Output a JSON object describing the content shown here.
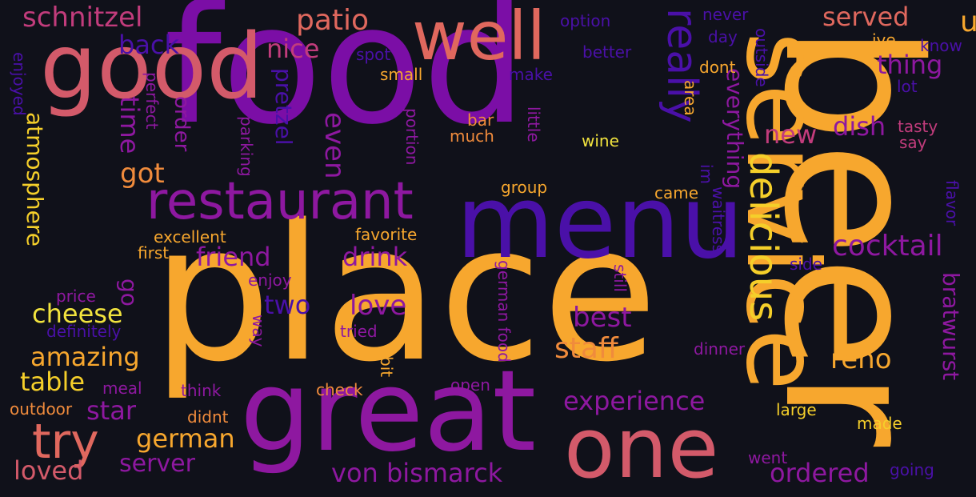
{
  "words": [
    {
      "id": "food",
      "text": "food",
      "color": "purple"
    },
    {
      "id": "place",
      "text": "place",
      "color": "amber"
    },
    {
      "id": "beer",
      "text": "beer",
      "color": "amber"
    },
    {
      "id": "great",
      "text": "great",
      "color": "violet"
    },
    {
      "id": "menu",
      "text": "menu",
      "color": "indigo"
    },
    {
      "id": "good",
      "text": "good",
      "color": "rose"
    },
    {
      "id": "service",
      "text": "service",
      "color": "amber"
    },
    {
      "id": "one",
      "text": "one",
      "color": "rose"
    },
    {
      "id": "well",
      "text": "well",
      "color": "salmon"
    },
    {
      "id": "restaurant",
      "text": "restaurant",
      "color": "violet"
    },
    {
      "id": "delicious",
      "text": "delicious",
      "color": "yellow"
    },
    {
      "id": "try",
      "text": "try",
      "color": "salmon"
    },
    {
      "id": "really",
      "text": "really",
      "color": "indigo"
    },
    {
      "id": "u",
      "text": "u",
      "color": "amber"
    },
    {
      "id": "schnitzel",
      "text": "schnitzel",
      "color": "pink"
    },
    {
      "id": "patio",
      "text": "patio",
      "color": "salmon"
    },
    {
      "id": "served",
      "text": "served",
      "color": "salmon"
    },
    {
      "id": "back",
      "text": "back",
      "color": "indigo"
    },
    {
      "id": "nice",
      "text": "nice",
      "color": "pink"
    },
    {
      "id": "thing",
      "text": "thing",
      "color": "violet"
    },
    {
      "id": "everything",
      "text": "everything",
      "color": "violet"
    },
    {
      "id": "new",
      "text": "new",
      "color": "pink"
    },
    {
      "id": "dish",
      "text": "dish",
      "color": "violet"
    },
    {
      "id": "pretzel",
      "text": "pretzel",
      "color": "indigo"
    },
    {
      "id": "even",
      "text": "even",
      "color": "violet"
    },
    {
      "id": "time",
      "text": "time",
      "color": "violet"
    },
    {
      "id": "order",
      "text": "order",
      "color": "violet"
    },
    {
      "id": "got",
      "text": "got",
      "color": "orange"
    },
    {
      "id": "atmosphere",
      "text": "atmosphere",
      "color": "yellow"
    },
    {
      "id": "friend",
      "text": "friend",
      "color": "violet"
    },
    {
      "id": "drink",
      "text": "drink",
      "color": "violet"
    },
    {
      "id": "cocktail",
      "text": "cocktail",
      "color": "violet"
    },
    {
      "id": "bratwurst",
      "text": "bratwurst",
      "color": "violet"
    },
    {
      "id": "cheese",
      "text": "cheese",
      "color": "lemon"
    },
    {
      "id": "go",
      "text": "go",
      "color": "violet"
    },
    {
      "id": "two",
      "text": "two",
      "color": "indigo"
    },
    {
      "id": "love",
      "text": "love",
      "color": "violet"
    },
    {
      "id": "best",
      "text": "best",
      "color": "violet"
    },
    {
      "id": "staff",
      "text": "staff",
      "color": "orange"
    },
    {
      "id": "reno",
      "text": "reno",
      "color": "amber"
    },
    {
      "id": "amazing",
      "text": "amazing",
      "color": "amber"
    },
    {
      "id": "table",
      "text": "table",
      "color": "yellow"
    },
    {
      "id": "experience",
      "text": "experience",
      "color": "violet"
    },
    {
      "id": "star",
      "text": "star",
      "color": "violet"
    },
    {
      "id": "german",
      "text": "german",
      "color": "amber"
    },
    {
      "id": "server",
      "text": "server",
      "color": "violet"
    },
    {
      "id": "loved",
      "text": "loved",
      "color": "rose"
    },
    {
      "id": "von-bismarck",
      "text": "von bismarck",
      "color": "violet"
    },
    {
      "id": "ordered",
      "text": "ordered",
      "color": "violet"
    },
    {
      "id": "tasty",
      "text": "tasty",
      "color": "pink"
    },
    {
      "id": "say",
      "text": "say",
      "color": "pink"
    },
    {
      "id": "lot",
      "text": "lot",
      "color": "indigo"
    },
    {
      "id": "know",
      "text": "know",
      "color": "indigo"
    },
    {
      "id": "ive",
      "text": "ive",
      "color": "amber"
    },
    {
      "id": "flavor",
      "text": "flavor",
      "color": "indigo"
    },
    {
      "id": "option",
      "text": "option",
      "color": "indigo"
    },
    {
      "id": "never",
      "text": "never",
      "color": "indigo"
    },
    {
      "id": "day",
      "text": "day",
      "color": "indigo"
    },
    {
      "id": "outside",
      "text": "outside",
      "color": "indigo"
    },
    {
      "id": "better",
      "text": "better",
      "color": "indigo"
    },
    {
      "id": "dont",
      "text": "dont",
      "color": "amber"
    },
    {
      "id": "area",
      "text": "area",
      "color": "amber"
    },
    {
      "id": "im",
      "text": "im",
      "color": "indigo"
    },
    {
      "id": "spot",
      "text": "spot",
      "color": "indigo"
    },
    {
      "id": "small",
      "text": "small",
      "color": "amber"
    },
    {
      "id": "make",
      "text": "make",
      "color": "indigo"
    },
    {
      "id": "bar",
      "text": "bar",
      "color": "orange"
    },
    {
      "id": "much",
      "text": "much",
      "color": "orange"
    },
    {
      "id": "little",
      "text": "little",
      "color": "violet"
    },
    {
      "id": "wine",
      "text": "wine",
      "color": "lemon"
    },
    {
      "id": "portion",
      "text": "portion",
      "color": "violet"
    },
    {
      "id": "parking",
      "text": "parking",
      "color": "violet"
    },
    {
      "id": "perfect",
      "text": "perfect",
      "color": "violet"
    },
    {
      "id": "enjoyed",
      "text": "enjoyed",
      "color": "indigo"
    },
    {
      "id": "group",
      "text": "group",
      "color": "amber"
    },
    {
      "id": "came",
      "text": "came",
      "color": "amber"
    },
    {
      "id": "favorite",
      "text": "favorite",
      "color": "amber"
    },
    {
      "id": "excellent",
      "text": "excellent",
      "color": "amber"
    },
    {
      "id": "first",
      "text": "first",
      "color": "amber"
    },
    {
      "id": "waitress",
      "text": "waitress",
      "color": "indigo"
    },
    {
      "id": "side",
      "text": "side",
      "color": "indigo"
    },
    {
      "id": "enjoy",
      "text": "enjoy",
      "color": "violet"
    },
    {
      "id": "price",
      "text": "price",
      "color": "violet"
    },
    {
      "id": "definitely",
      "text": "definitely",
      "color": "indigo"
    },
    {
      "id": "tried",
      "text": "tried",
      "color": "violet"
    },
    {
      "id": "way",
      "text": "way",
      "color": "violet"
    },
    {
      "id": "still",
      "text": "still",
      "color": "violet"
    },
    {
      "id": "german-food",
      "text": "german food",
      "color": "violet"
    },
    {
      "id": "bit",
      "text": "bit",
      "color": "amber"
    },
    {
      "id": "dinner",
      "text": "dinner",
      "color": "violet"
    },
    {
      "id": "meal",
      "text": "meal",
      "color": "violet"
    },
    {
      "id": "think",
      "text": "think",
      "color": "violet"
    },
    {
      "id": "check",
      "text": "check",
      "color": "orange"
    },
    {
      "id": "open",
      "text": "open",
      "color": "violet"
    },
    {
      "id": "outdoor",
      "text": "outdoor",
      "color": "orange"
    },
    {
      "id": "didnt",
      "text": "didnt",
      "color": "orange"
    },
    {
      "id": "large",
      "text": "large",
      "color": "yellow"
    },
    {
      "id": "made",
      "text": "made",
      "color": "yellow"
    },
    {
      "id": "went",
      "text": "went",
      "color": "violet"
    },
    {
      "id": "going",
      "text": "going",
      "color": "indigo"
    }
  ]
}
